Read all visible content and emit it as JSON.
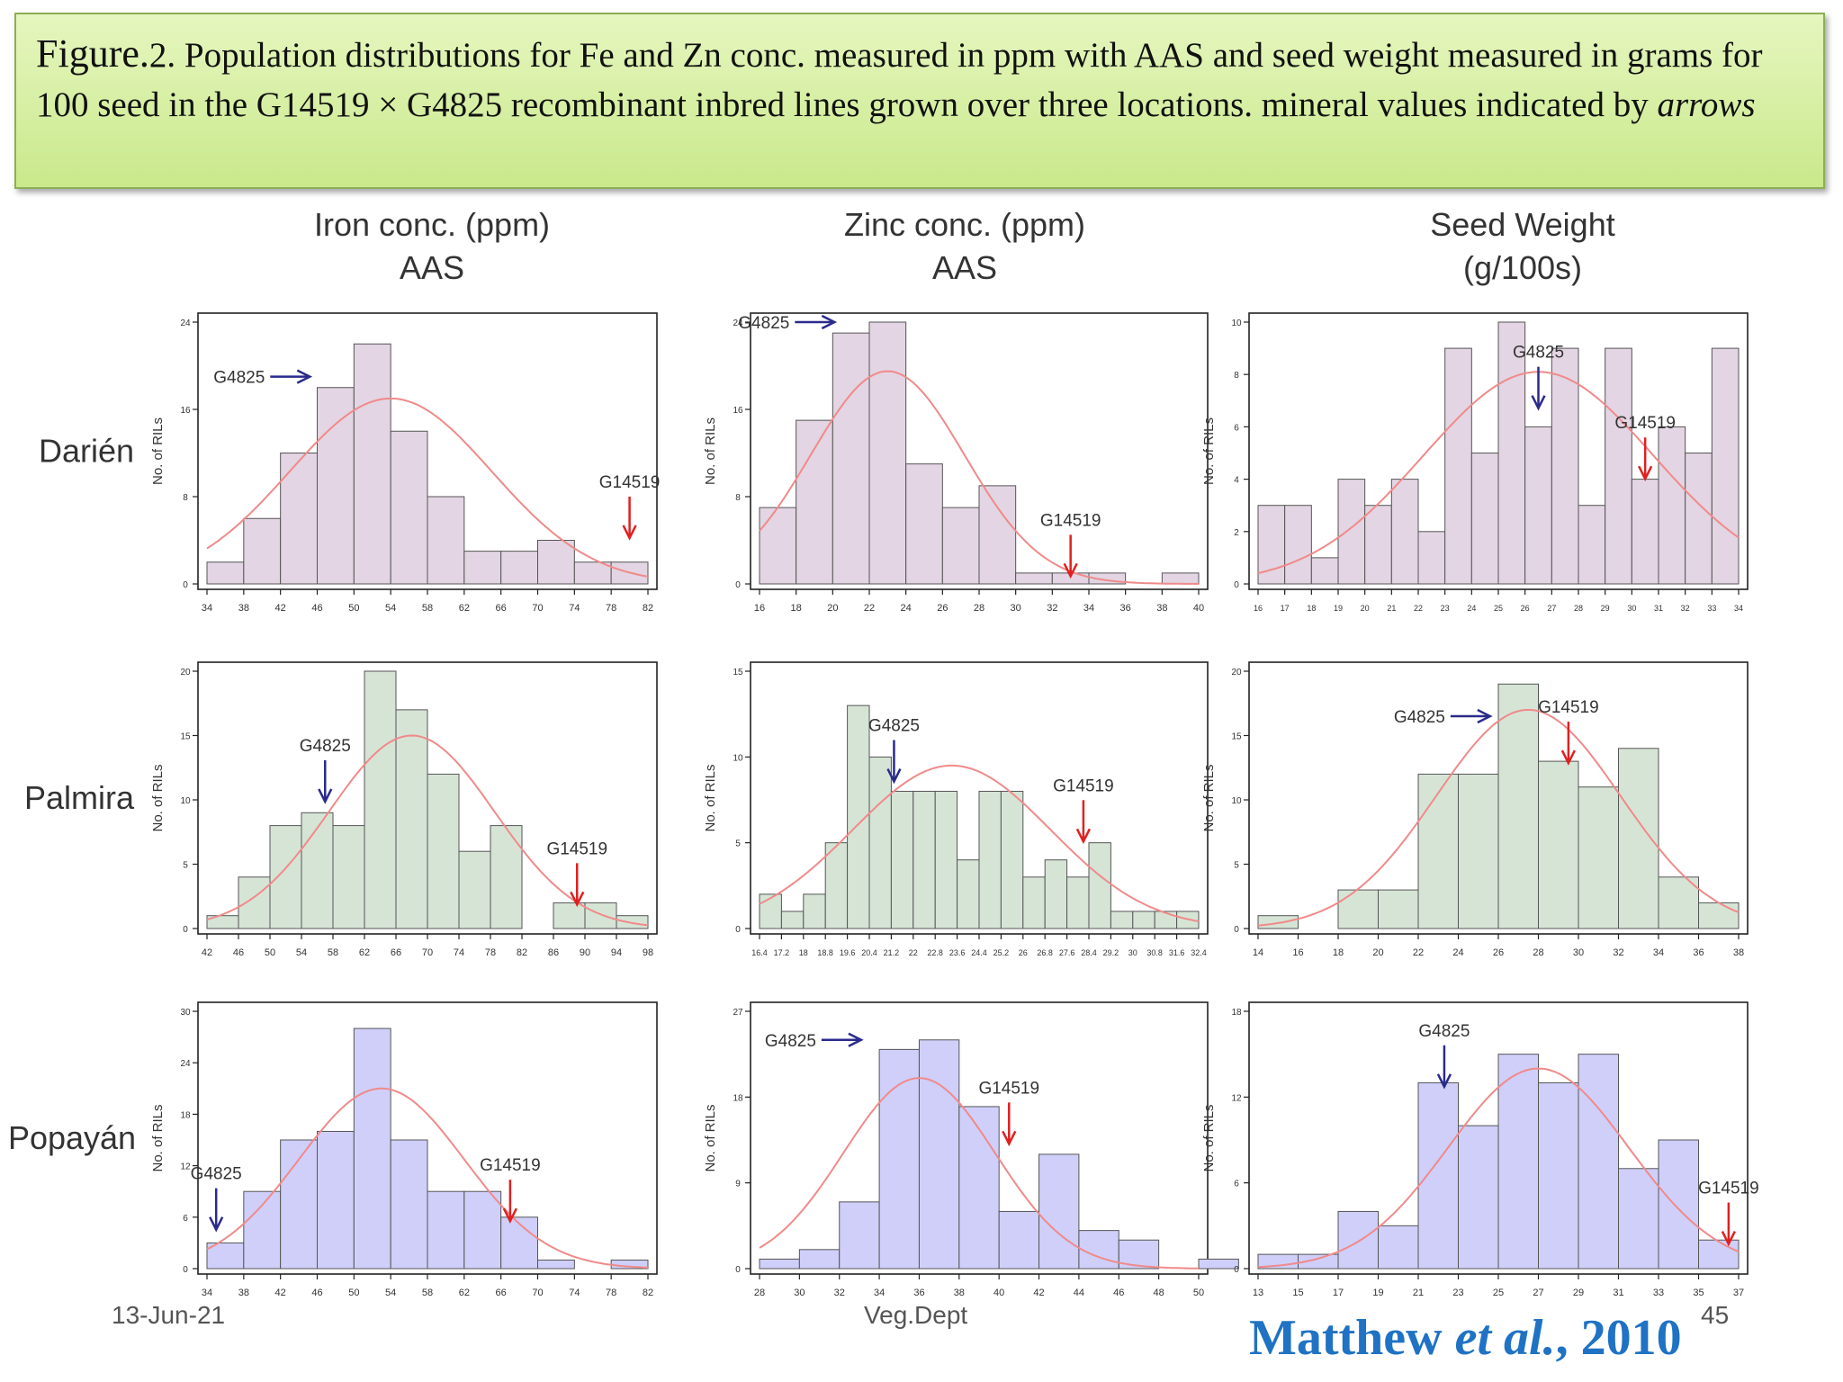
{
  "caption": {
    "fig_label": "Figure.",
    "fig_number": "2.",
    "text": " Population distributions for Fe and Zn conc. measured in ppm with AAS and seed weight measured in grams for 100 seed in the G14519 × G4825 recombinant inbred lines grown over three locations. mineral values indicated by ",
    "emph": "arrows"
  },
  "columns": [
    {
      "title": "Iron conc. (ppm)",
      "subtitle": "AAS"
    },
    {
      "title": "Zinc conc. (ppm)",
      "subtitle": "AAS"
    },
    {
      "title": "Seed Weight",
      "subtitle": "(g/100s)"
    }
  ],
  "rows": [
    "Darién",
    "Palmira",
    "Popayán"
  ],
  "colors": {
    "Darién": "#e3d5e3",
    "Palmira": "#d6e4d6",
    "Popayán": "#cfcffa",
    "curve": "#f08a8a",
    "arrow_g4825": "#2a2a8c",
    "arrow_g14519": "#e02020"
  },
  "chart_data": [
    {
      "type": "bar",
      "location": "Darién",
      "variable": "Iron conc. (ppm) AAS",
      "ylabel": "No. of RILs",
      "x_ticks": [
        34,
        38,
        42,
        46,
        50,
        54,
        58,
        62,
        66,
        70,
        74,
        78,
        82
      ],
      "bin_start": 34,
      "bin_width": 4,
      "values": [
        2,
        6,
        12,
        18,
        22,
        14,
        8,
        3,
        3,
        4,
        2,
        2
      ],
      "ylim": [
        0,
        24
      ],
      "y_ticks": [
        0,
        8,
        16,
        24
      ],
      "curve": {
        "mean": 54,
        "sd": 11,
        "peak": 17
      },
      "arrows": [
        {
          "label": "G4825",
          "value": 45,
          "dir": "right",
          "y": 19
        },
        {
          "label": "G14519",
          "value": 80,
          "dir": "down",
          "y": 8.5
        }
      ]
    },
    {
      "type": "bar",
      "location": "Darién",
      "variable": "Zinc conc. (ppm) AAS",
      "ylabel": "No. of RILs",
      "x_ticks": [
        16,
        18,
        20,
        22,
        24,
        26,
        28,
        30,
        32,
        34,
        36,
        38,
        40
      ],
      "bin_start": 16,
      "bin_width": 2,
      "values": [
        7,
        15,
        23,
        24,
        11,
        7,
        9,
        1,
        1,
        1,
        0,
        1
      ],
      "ylim": [
        0,
        24
      ],
      "y_ticks": [
        0,
        8,
        16,
        24
      ],
      "curve": {
        "mean": 23,
        "sd": 4.2,
        "peak": 19.5
      },
      "arrows": [
        {
          "label": "G4825",
          "value": 20,
          "dir": "right",
          "y": 24
        },
        {
          "label": "G14519",
          "value": 33,
          "dir": "down",
          "y": 5
        }
      ]
    },
    {
      "type": "bar",
      "location": "Darién",
      "variable": "Seed Weight (g/100s)",
      "ylabel": "No. of RILs",
      "x_ticks": [
        16,
        17,
        18,
        19,
        20,
        21,
        22,
        23,
        24,
        25,
        26,
        27,
        28,
        29,
        30,
        31,
        32,
        33,
        34
      ],
      "bin_start": 16,
      "bin_width": 1,
      "values": [
        3,
        3,
        1,
        4,
        3,
        4,
        2,
        9,
        5,
        10,
        6,
        9,
        3,
        9,
        4,
        6,
        5,
        9
      ],
      "ylim": [
        0,
        10
      ],
      "y_ticks": [
        0,
        2,
        4,
        6,
        8,
        10
      ],
      "curve": {
        "mean": 26.5,
        "sd": 4.3,
        "peak": 8.1
      },
      "arrows": [
        {
          "label": "G4825",
          "value": 26.5,
          "dir": "down",
          "y": 8.5
        },
        {
          "label": "G14519",
          "value": 30.5,
          "dir": "down",
          "y": 5.8
        }
      ]
    },
    {
      "type": "bar",
      "location": "Palmira",
      "variable": "Iron conc. (ppm) AAS",
      "ylabel": "No. of RILs",
      "x_ticks": [
        42,
        46,
        50,
        54,
        58,
        62,
        66,
        70,
        74,
        78,
        82,
        86,
        90,
        94,
        98
      ],
      "bin_start": 42,
      "bin_width": 4,
      "values": [
        1,
        4,
        8,
        9,
        8,
        20,
        17,
        12,
        6,
        8,
        0,
        2,
        2,
        1
      ],
      "ylim": [
        0,
        20
      ],
      "y_ticks": [
        0,
        5,
        10,
        15,
        20
      ],
      "curve": {
        "mean": 68,
        "sd": 10.5,
        "peak": 15
      },
      "arrows": [
        {
          "label": "G4825",
          "value": 57,
          "dir": "down",
          "y": 13.5
        },
        {
          "label": "G14519",
          "value": 89,
          "dir": "down",
          "y": 5.5
        }
      ]
    },
    {
      "type": "bar",
      "location": "Palmira",
      "variable": "Zinc conc. (ppm) AAS",
      "ylabel": "No. of RILs",
      "x_ticks": [
        16.4,
        17.2,
        18.0,
        18.8,
        19.6,
        20.4,
        21.2,
        22.0,
        22.8,
        23.6,
        24.4,
        25.2,
        26.0,
        26.8,
        27.6,
        28.4,
        29.2,
        30.0,
        30.8,
        31.6,
        32.4
      ],
      "bin_start": 16.4,
      "bin_width": 0.8,
      "values": [
        2,
        1,
        2,
        5,
        13,
        10,
        8,
        8,
        8,
        4,
        8,
        8,
        3,
        4,
        3,
        5,
        1,
        1,
        1,
        1
      ],
      "ylim": [
        0,
        15
      ],
      "y_ticks": [
        0,
        5,
        10,
        15
      ],
      "curve": {
        "mean": 23.4,
        "sd": 3.6,
        "peak": 9.5
      },
      "arrows": [
        {
          "label": "G4825",
          "value": 21.3,
          "dir": "down",
          "y": 11.3
        },
        {
          "label": "G14519",
          "value": 28.2,
          "dir": "down",
          "y": 7.8
        }
      ]
    },
    {
      "type": "bar",
      "location": "Palmira",
      "variable": "Seed Weight (g/100s)",
      "ylabel": "No. of RILs",
      "x_ticks": [
        14,
        16,
        18,
        20,
        22,
        24,
        26,
        28,
        30,
        32,
        34,
        36,
        38
      ],
      "bin_start": 14,
      "bin_width": 2,
      "values": [
        1,
        0,
        3,
        3,
        12,
        12,
        19,
        13,
        11,
        14,
        4,
        2
      ],
      "ylim": [
        0,
        20
      ],
      "y_ticks": [
        0,
        5,
        10,
        15,
        20
      ],
      "curve": {
        "mean": 27.5,
        "sd": 4.6,
        "peak": 17
      },
      "arrows": [
        {
          "label": "G4825",
          "value": 25.5,
          "dir": "right",
          "y": 16.5
        },
        {
          "label": "G14519",
          "value": 29.5,
          "dir": "down",
          "y": 16.5
        }
      ]
    },
    {
      "type": "bar",
      "location": "Popayán",
      "variable": "Iron conc. (ppm) AAS",
      "ylabel": "No. of RILs",
      "x_ticks": [
        34,
        38,
        42,
        46,
        50,
        54,
        58,
        62,
        66,
        70,
        74,
        78,
        82
      ],
      "bin_start": 34,
      "bin_width": 4,
      "values": [
        3,
        9,
        15,
        16,
        28,
        15,
        9,
        9,
        6,
        1,
        0,
        1
      ],
      "ylim": [
        0,
        30
      ],
      "y_ticks": [
        0,
        6,
        12,
        18,
        24,
        30
      ],
      "curve": {
        "mean": 53,
        "sd": 9,
        "peak": 21
      },
      "arrows": [
        {
          "label": "G4825",
          "value": 35,
          "dir": "down",
          "y": 10
        },
        {
          "label": "G14519",
          "value": 67,
          "dir": "down",
          "y": 11
        }
      ]
    },
    {
      "type": "bar",
      "location": "Popayán",
      "variable": "Zinc conc. (ppm) AAS",
      "ylabel": "No. of RILs",
      "x_ticks": [
        28,
        30,
        32,
        34,
        36,
        38,
        40,
        42,
        44,
        46,
        48,
        50
      ],
      "bin_start": 28,
      "bin_width": 2,
      "values": [
        1,
        2,
        7,
        23,
        24,
        17,
        6,
        12,
        4,
        3,
        0,
        1
      ],
      "ylim": [
        0,
        27
      ],
      "y_ticks": [
        0,
        9,
        18,
        27
      ],
      "curve": {
        "mean": 36,
        "sd": 3.8,
        "peak": 20
      },
      "arrows": [
        {
          "label": "G4825",
          "value": 33,
          "dir": "right",
          "y": 24
        },
        {
          "label": "G14519",
          "value": 40.5,
          "dir": "down",
          "y": 18
        }
      ]
    },
    {
      "type": "bar",
      "location": "Popayán",
      "variable": "Seed Weight (g/100s)",
      "ylabel": "No. of RILs",
      "x_ticks": [
        13,
        15,
        17,
        19,
        21,
        23,
        25,
        27,
        29,
        31,
        33,
        35,
        37
      ],
      "bin_start": 13,
      "bin_width": 2,
      "values": [
        1,
        1,
        4,
        3,
        13,
        10,
        15,
        13,
        15,
        7,
        9,
        2
      ],
      "ylim": [
        0,
        18
      ],
      "y_ticks": [
        0,
        6,
        12,
        18
      ],
      "curve": {
        "mean": 27,
        "sd": 4.5,
        "peak": 14
      },
      "arrows": [
        {
          "label": "G4825",
          "value": 22.3,
          "dir": "down",
          "y": 16
        },
        {
          "label": "G14519",
          "value": 36.5,
          "dir": "down",
          "y": 5
        }
      ]
    }
  ],
  "footer": {
    "date": "13-Jun-21",
    "dept": "Veg.Dept",
    "page": "45"
  },
  "citation": {
    "author": "Matthew ",
    "etal": "et al.",
    "year": ", 2010"
  }
}
